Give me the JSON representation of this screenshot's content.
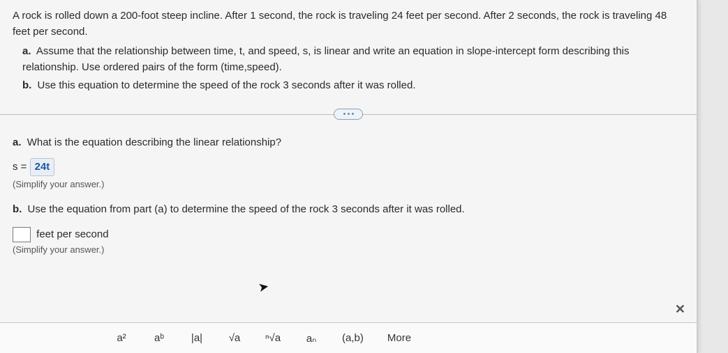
{
  "question": {
    "intro": "A rock is rolled down a 200-foot steep incline. After 1 second, the rock is traveling 24 feet per second. After 2 seconds, the rock is traveling 48 feet per second.",
    "parts": [
      {
        "label": "a.",
        "text": "Assume that the relationship between time, t, and speed, s, is linear and write an equation in slope-intercept form describing this relationship. Use ordered pairs of the form (time,speed)."
      },
      {
        "label": "b.",
        "text": "Use this equation to determine the speed of the rock 3 seconds after it was rolled."
      }
    ]
  },
  "answers": {
    "a": {
      "prompt_label": "a.",
      "prompt": "What is the equation describing the linear relationship?",
      "eq_lhs": "s =",
      "eq_value": "24t",
      "hint": "(Simplify your answer.)"
    },
    "b": {
      "prompt_label": "b.",
      "prompt": "Use the equation from part (a) to determine the speed of the rock 3 seconds after it was rolled.",
      "unit_text": "feet per second",
      "hint": "(Simplify your answer.)"
    }
  },
  "toolbar": {
    "items": [
      "a²",
      "aᵇ",
      "|a|",
      "√a",
      "ⁿ√a",
      "aₙ",
      "(a,b)"
    ],
    "more": "More"
  },
  "close": "✕"
}
